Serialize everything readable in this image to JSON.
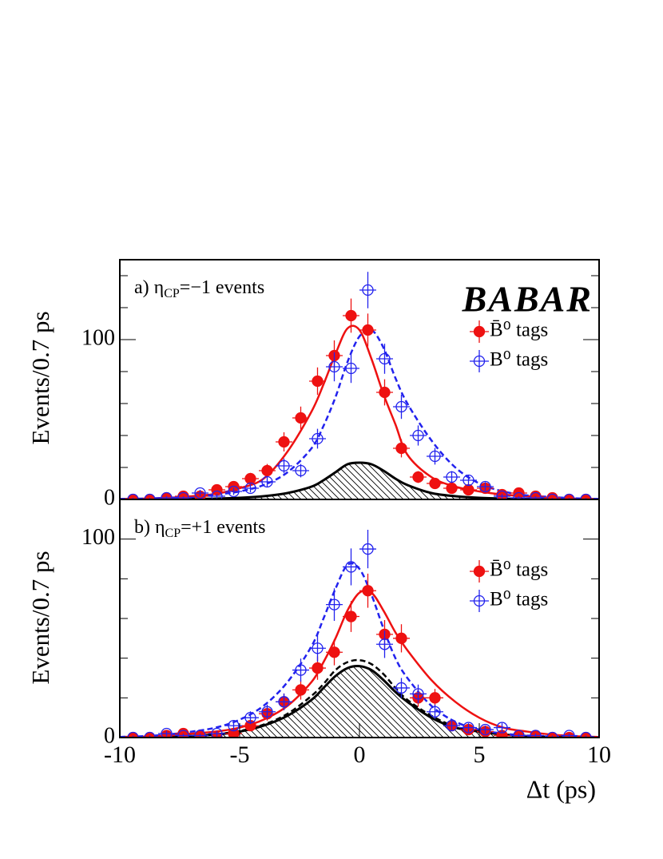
{
  "chart_data": [
    {
      "type": "scatter",
      "annotation": [
        "a) η",
        "CP",
        "=−1 events"
      ],
      "logo": "BABAR",
      "ylabel": "Events/0.7 ps",
      "xlim": [
        -10,
        10
      ],
      "ylim": [
        0,
        150
      ],
      "yticks": [
        0,
        100
      ],
      "yminorticks": [
        20,
        40,
        60,
        80,
        120,
        140
      ],
      "x": [
        -9.45,
        -8.75,
        -8.05,
        -7.35,
        -6.65,
        -5.95,
        -5.25,
        -4.55,
        -3.85,
        -3.15,
        -2.45,
        -1.75,
        -1.05,
        -0.35,
        0.35,
        1.05,
        1.75,
        2.45,
        3.15,
        3.85,
        4.55,
        5.25,
        5.95,
        6.65,
        7.35,
        8.05,
        8.75,
        9.45
      ],
      "series": [
        {
          "name": "B̄⁰ tags",
          "color": "#ee1111",
          "marker": "filled",
          "values": [
            0,
            0,
            1,
            2,
            2,
            6,
            8,
            13,
            18,
            36,
            51,
            74,
            90,
            115,
            106,
            67,
            32,
            14,
            10,
            7,
            6,
            7,
            3,
            4,
            2,
            1,
            0,
            0
          ],
          "errors": [
            1,
            1,
            1,
            1.4,
            1.4,
            2.4,
            2.8,
            3.6,
            4.2,
            6,
            7.1,
            8.6,
            9.5,
            10.7,
            10.3,
            8.2,
            5.7,
            3.7,
            3.2,
            2.6,
            2.4,
            2.6,
            1.7,
            2,
            1.4,
            1,
            1,
            1
          ]
        },
        {
          "name": "B⁰ tags",
          "color": "#2222ee",
          "marker": "open",
          "values": [
            0,
            0,
            1,
            1,
            4,
            2,
            5,
            7,
            11,
            21,
            18,
            38,
            83,
            82,
            131,
            88,
            58,
            40,
            27,
            14,
            12,
            8,
            2,
            1,
            1,
            0,
            0,
            0
          ],
          "errors": [
            1,
            1,
            1,
            1,
            2,
            1.4,
            2.2,
            2.6,
            3.3,
            4.6,
            4.2,
            6.2,
            9.1,
            9.1,
            11.4,
            9.4,
            7.6,
            6.3,
            5.2,
            3.7,
            3.5,
            2.8,
            1.4,
            1,
            1,
            1,
            1,
            1
          ]
        }
      ],
      "curve_x": [
        -10,
        -9,
        -8,
        -7,
        -6,
        -5,
        -4,
        -3,
        -2,
        -1.5,
        -1,
        -0.5,
        0,
        0.5,
        1,
        1.5,
        2,
        3,
        4,
        5,
        6,
        7,
        8,
        9,
        10
      ],
      "curves": [
        {
          "color": "#000000",
          "dashed": false,
          "hatched": true,
          "values": [
            0,
            0,
            0.1,
            0.3,
            0.5,
            1,
            2,
            4,
            8,
            12,
            17,
            22,
            23,
            22,
            18,
            13,
            9,
            4,
            2,
            1,
            0.5,
            0.3,
            0.1,
            0,
            0
          ]
        },
        {
          "color": "#ee1111",
          "dashed": false,
          "hatched": false,
          "values": [
            0.3,
            0.5,
            1,
            2,
            3.5,
            7,
            13,
            30,
            55,
            72,
            91,
            107,
            106,
            88,
            66,
            47,
            28,
            14,
            8,
            5,
            3,
            2,
            1,
            0.5,
            0.3
          ]
        },
        {
          "color": "#2222ee",
          "dashed": true,
          "hatched": false,
          "values": [
            0.3,
            0.5,
            1,
            1.5,
            3,
            5,
            9,
            17,
            32,
            46,
            64,
            86,
            102,
            106,
            95,
            76,
            60,
            37,
            20,
            10,
            5,
            2.5,
            1.5,
            0.7,
            0.3
          ]
        }
      ]
    },
    {
      "type": "scatter",
      "annotation": [
        "b) η",
        "CP",
        "=+1 events"
      ],
      "ylabel": "Events/0.7 ps",
      "xlabel": "Δt (ps)",
      "xlim": [
        -10,
        10
      ],
      "xticks": [
        -10,
        -5,
        0,
        5,
        10
      ],
      "ylim": [
        0,
        120
      ],
      "yticks": [
        0,
        100
      ],
      "yminorticks": [
        20,
        40,
        60,
        80
      ],
      "x": [
        -9.45,
        -8.75,
        -8.05,
        -7.35,
        -6.65,
        -5.95,
        -5.25,
        -4.55,
        -3.85,
        -3.15,
        -2.45,
        -1.75,
        -1.05,
        -0.35,
        0.35,
        1.05,
        1.75,
        2.45,
        3.15,
        3.85,
        4.55,
        5.25,
        5.95,
        6.65,
        7.35,
        8.05,
        8.75,
        9.45
      ],
      "series": [
        {
          "name": "B̄⁰ tags",
          "color": "#ee1111",
          "marker": "filled",
          "values": [
            0,
            0,
            1,
            2,
            1,
            0,
            2,
            6,
            12,
            18,
            24,
            35,
            43,
            61,
            74,
            52,
            50,
            20,
            20,
            6,
            4,
            3,
            1,
            1,
            1,
            0,
            0,
            0
          ],
          "errors": [
            1,
            1,
            1,
            1.4,
            1,
            1,
            1.4,
            2.4,
            3.5,
            4.2,
            4.9,
            5.9,
            6.6,
            7.8,
            8.6,
            7.2,
            7.1,
            4.5,
            4.5,
            2.4,
            2,
            1.7,
            1,
            1,
            1,
            1,
            1,
            1
          ]
        },
        {
          "name": "B⁰ tags",
          "color": "#2222ee",
          "marker": "open",
          "values": [
            0,
            0,
            2,
            1,
            1,
            2,
            6,
            10,
            13,
            18,
            34,
            45,
            67,
            86,
            95,
            47,
            25,
            22,
            13,
            6,
            5,
            4,
            5,
            1,
            1,
            0,
            1,
            0
          ],
          "errors": [
            1,
            1,
            1.4,
            1,
            1,
            1.4,
            2.4,
            3.2,
            3.6,
            4.2,
            5.8,
            6.7,
            8.2,
            9.3,
            9.7,
            6.9,
            5,
            4.7,
            3.6,
            2.4,
            2.2,
            2,
            2.2,
            1,
            1,
            1,
            1,
            1
          ]
        }
      ],
      "curve_x": [
        -10,
        -9,
        -8,
        -7,
        -6,
        -5,
        -4,
        -3,
        -2,
        -1.5,
        -1,
        -0.5,
        0,
        0.5,
        1,
        1.5,
        2,
        3,
        4,
        5,
        6,
        7,
        8,
        9,
        10
      ],
      "curves": [
        {
          "color": "#000000",
          "dashed": false,
          "hatched": true,
          "values": [
            0,
            0.2,
            0.4,
            0.8,
            1.5,
            3,
            6,
            11,
            19,
            25,
            31,
            35,
            36,
            34,
            29,
            23,
            18,
            10,
            5,
            3,
            1.5,
            0.7,
            0.3,
            0.1,
            0
          ]
        },
        {
          "color": "#000000",
          "dashed": true,
          "hatched": false,
          "values": [
            0,
            0.2,
            0.4,
            0.9,
            1.7,
            3.3,
            6.5,
            12,
            21,
            27,
            34,
            38,
            39,
            37,
            32,
            25,
            19,
            11,
            5.5,
            3,
            1.6,
            0.8,
            0.3,
            0.1,
            0
          ]
        },
        {
          "color": "#ee1111",
          "dashed": false,
          "hatched": false,
          "values": [
            0.3,
            0.5,
            1,
            2,
            3,
            5,
            9,
            16,
            28,
            38,
            50,
            64,
            73,
            73,
            64,
            53,
            44,
            29,
            18,
            10,
            5,
            3,
            1.5,
            0.7,
            0.3
          ]
        },
        {
          "color": "#2222ee",
          "dashed": true,
          "hatched": false,
          "values": [
            0.3,
            0.7,
            1.5,
            3,
            5,
            9,
            16,
            28,
            46,
            60,
            75,
            87,
            85,
            72,
            55,
            40,
            30,
            16,
            8,
            4,
            2,
            1,
            0.5,
            0.3,
            0.2
          ]
        }
      ]
    }
  ]
}
